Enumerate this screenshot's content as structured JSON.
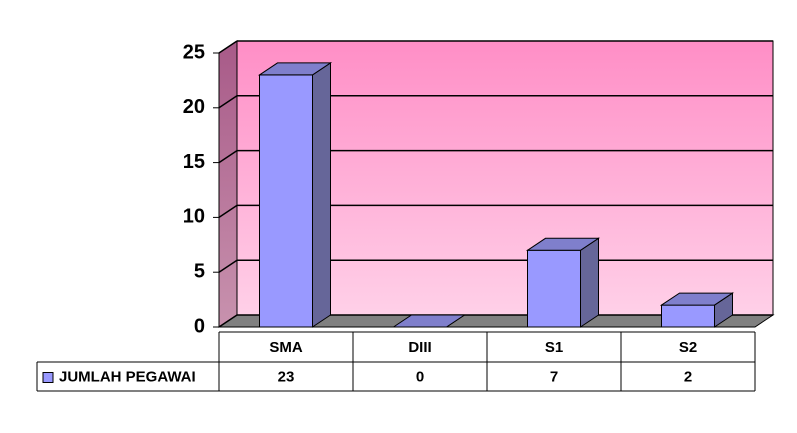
{
  "chart_data": {
    "type": "bar3d",
    "categories": [
      "SMA",
      "DIII",
      "S1",
      "S2"
    ],
    "series": [
      {
        "name": "JUMLAH PEGAWAI",
        "color": "#9999ff",
        "values": [
          23,
          0,
          7,
          2
        ]
      }
    ],
    "ylim": [
      0,
      25
    ],
    "yticks": [
      0,
      5,
      10,
      15,
      20,
      25
    ],
    "grid": true,
    "legend": "table"
  }
}
